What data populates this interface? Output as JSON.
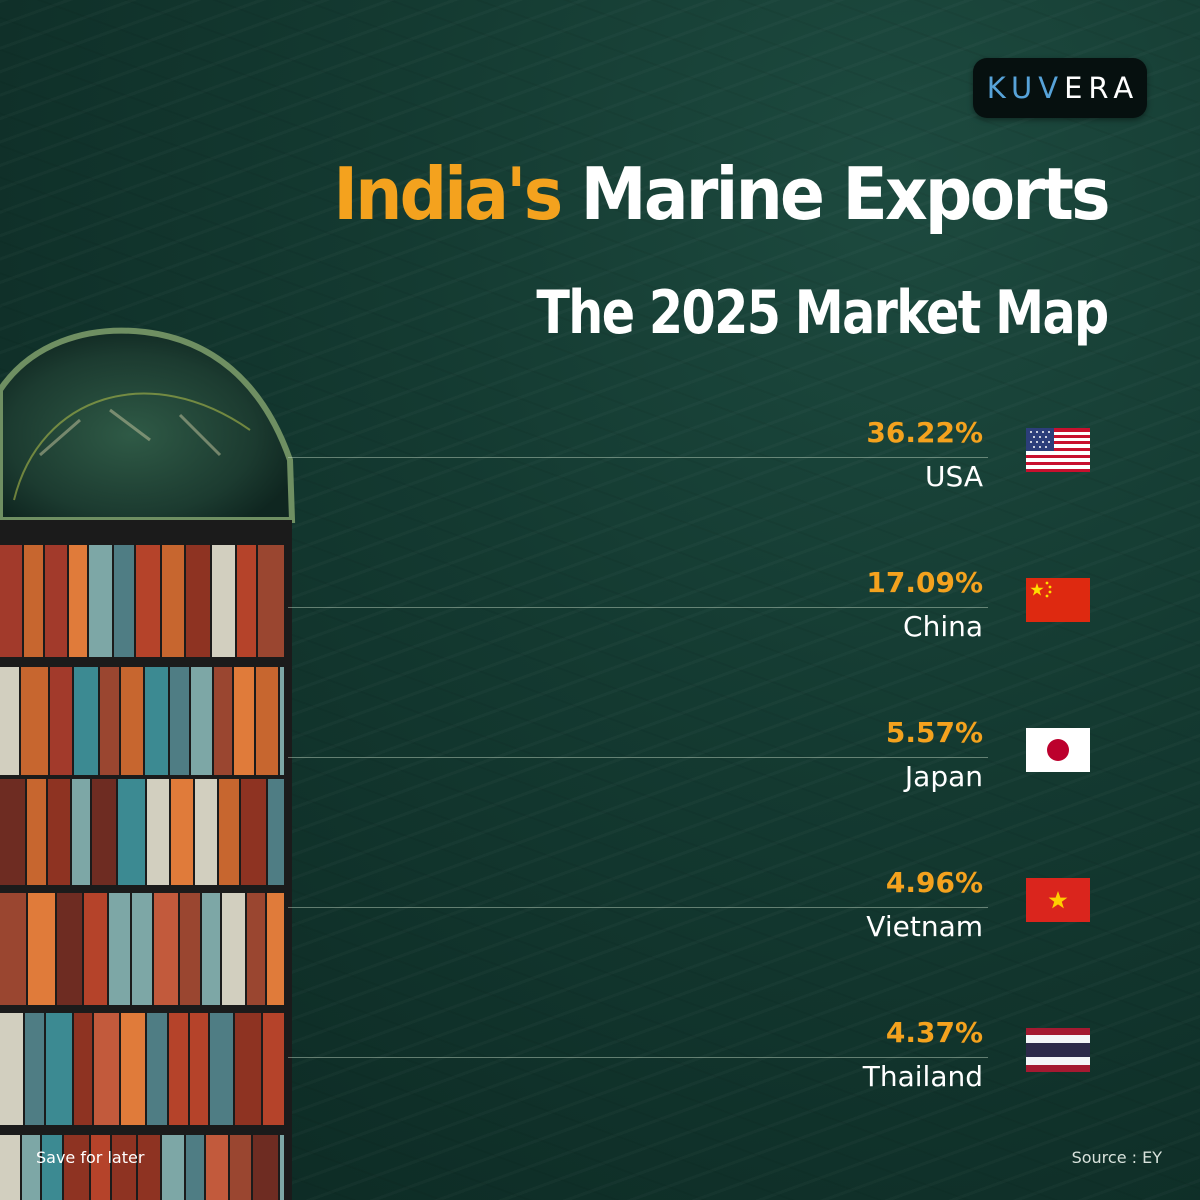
{
  "logo": {
    "part1": "KUV",
    "part2": "ERA"
  },
  "title": {
    "highlight": "India's",
    "rest": " Marine Exports"
  },
  "subtitle": "The 2025 Market Map",
  "markets": [
    {
      "percent": "36.22%",
      "share": 36.22,
      "country": "USA",
      "flag": "usa-flag-icon"
    },
    {
      "percent": "17.09%",
      "share": 17.09,
      "country": "China",
      "flag": "china-flag-icon"
    },
    {
      "percent": "5.57%",
      "share": 5.57,
      "country": "Japan",
      "flag": "japan-flag-icon"
    },
    {
      "percent": "4.96%",
      "share": 4.96,
      "country": "Vietnam",
      "flag": "vietnam-flag-icon"
    },
    {
      "percent": "4.37%",
      "share": 4.37,
      "country": "Thailand",
      "flag": "thailand-flag-icon"
    }
  ],
  "footer": {
    "left": "Save for later",
    "right": "Source : EY"
  },
  "colors": {
    "accent": "#f4a21e",
    "background": "#143a31",
    "logo_blue": "#57a3d9",
    "text": "#ffffff"
  }
}
